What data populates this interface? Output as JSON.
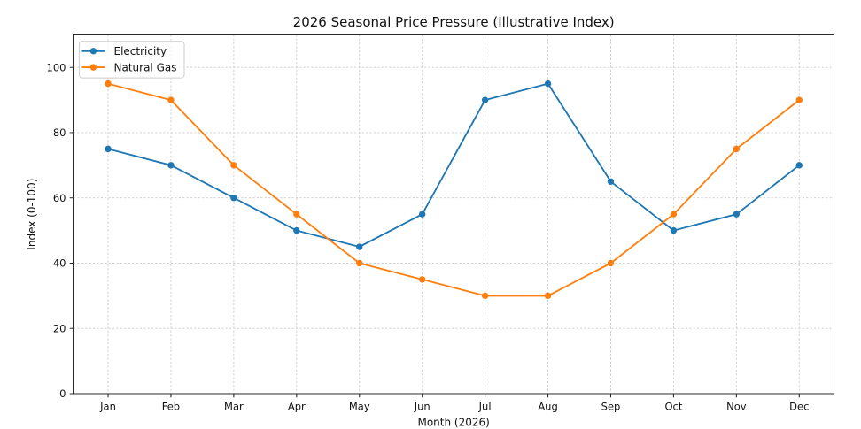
{
  "chart_data": {
    "type": "line",
    "title": "2026 Seasonal Price Pressure (Illustrative Index)",
    "xlabel": "Month (2026)",
    "ylabel": "Index (0-100)",
    "categories": [
      "Jan",
      "Feb",
      "Mar",
      "Apr",
      "May",
      "Jun",
      "Jul",
      "Aug",
      "Sep",
      "Oct",
      "Nov",
      "Dec"
    ],
    "series": [
      {
        "name": "Electricity",
        "color": "#1f77b4",
        "marker": "circle",
        "values": [
          75,
          70,
          60,
          50,
          45,
          55,
          90,
          95,
          65,
          50,
          55,
          70
        ]
      },
      {
        "name": "Natural Gas",
        "color": "#ff7f0e",
        "marker": "circle",
        "values": [
          95,
          90,
          70,
          55,
          40,
          35,
          30,
          30,
          40,
          55,
          75,
          90
        ]
      }
    ],
    "ylim": [
      0,
      110
    ],
    "yticks": [
      0,
      20,
      40,
      60,
      80,
      100
    ],
    "grid": "dashed",
    "legend": {
      "position": "upper left",
      "entries": [
        "Electricity",
        "Natural Gas"
      ]
    },
    "colors": {
      "grid": "#cccccc",
      "spine": "#2b2b2b",
      "background": "#ffffff",
      "text": "#111111"
    }
  }
}
